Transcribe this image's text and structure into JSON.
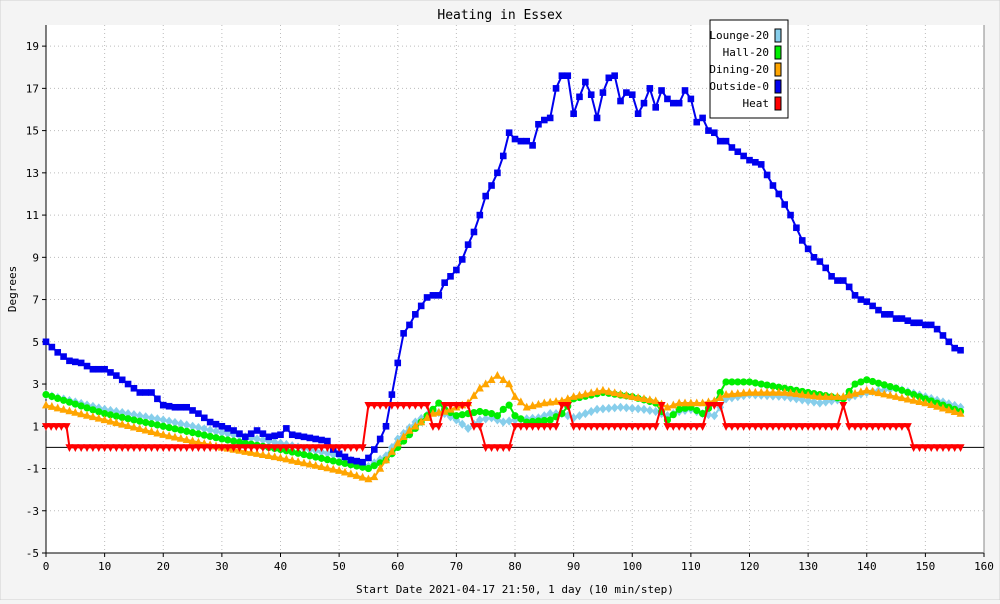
{
  "chart_data": {
    "type": "line",
    "title": "Heating in Essex",
    "xlabel": "Start Date 2021-04-17 21:50, 1 day (10 min/step)",
    "ylabel": "Degrees",
    "xlim": [
      0,
      160
    ],
    "ylim": [
      -5,
      20
    ],
    "x_ticks": [
      0,
      10,
      20,
      30,
      40,
      50,
      60,
      70,
      80,
      90,
      100,
      110,
      120,
      130,
      140,
      150,
      160
    ],
    "y_ticks": [
      -5,
      -3,
      -1,
      1,
      3,
      5,
      7,
      9,
      11,
      13,
      15,
      17,
      19
    ],
    "grid": true,
    "legend_position": "top-right",
    "baseline": 0,
    "series": [
      {
        "name": "Lounge-20",
        "color": "#87ceeb",
        "marker": "diamond",
        "points": [
          [
            0,
            2.5
          ],
          [
            10,
            1.8
          ],
          [
            20,
            1.3
          ],
          [
            30,
            0.7
          ],
          [
            40,
            0.2
          ],
          [
            50,
            -0.4
          ],
          [
            55,
            -0.9
          ],
          [
            58,
            -0.4
          ],
          [
            60,
            0.4
          ],
          [
            63,
            1.2
          ],
          [
            66,
            1.7
          ],
          [
            68,
            1.6
          ],
          [
            70,
            1.3
          ],
          [
            72,
            0.9
          ],
          [
            74,
            1.3
          ],
          [
            76,
            1.4
          ],
          [
            78,
            1.2
          ],
          [
            80,
            1.3
          ],
          [
            84,
            1.4
          ],
          [
            86,
            1.6
          ],
          [
            88,
            1.6
          ],
          [
            90,
            1.4
          ],
          [
            94,
            1.8
          ],
          [
            98,
            1.9
          ],
          [
            102,
            1.8
          ],
          [
            104,
            1.7
          ],
          [
            106,
            1.5
          ],
          [
            108,
            1.7
          ],
          [
            110,
            1.8
          ],
          [
            112,
            1.6
          ],
          [
            114,
            1.5
          ],
          [
            116,
            2.3
          ],
          [
            120,
            2.5
          ],
          [
            126,
            2.4
          ],
          [
            132,
            2.1
          ],
          [
            136,
            2.3
          ],
          [
            140,
            2.6
          ],
          [
            145,
            2.8
          ],
          [
            150,
            2.4
          ],
          [
            156,
            1.9
          ]
        ]
      },
      {
        "name": "Hall-20",
        "color": "#00ee00",
        "marker": "circle",
        "points": [
          [
            0,
            2.5
          ],
          [
            10,
            1.6
          ],
          [
            20,
            1.0
          ],
          [
            30,
            0.4
          ],
          [
            40,
            -0.1
          ],
          [
            50,
            -0.7
          ],
          [
            55,
            -1.0
          ],
          [
            58,
            -0.6
          ],
          [
            60,
            0.0
          ],
          [
            62,
            0.6
          ],
          [
            64,
            1.2
          ],
          [
            66,
            1.8
          ],
          [
            67,
            2.1
          ],
          [
            68,
            1.8
          ],
          [
            70,
            1.5
          ],
          [
            72,
            1.6
          ],
          [
            74,
            1.7
          ],
          [
            76,
            1.6
          ],
          [
            77,
            1.5
          ],
          [
            78,
            1.8
          ],
          [
            79,
            2.0
          ],
          [
            80,
            1.5
          ],
          [
            82,
            1.2
          ],
          [
            86,
            1.3
          ],
          [
            88,
            1.6
          ],
          [
            90,
            2.3
          ],
          [
            95,
            2.6
          ],
          [
            100,
            2.4
          ],
          [
            104,
            2.1
          ],
          [
            106,
            1.3
          ],
          [
            108,
            1.8
          ],
          [
            110,
            1.9
          ],
          [
            112,
            1.6
          ],
          [
            114,
            2.1
          ],
          [
            116,
            3.1
          ],
          [
            120,
            3.1
          ],
          [
            126,
            2.8
          ],
          [
            132,
            2.5
          ],
          [
            136,
            2.3
          ],
          [
            138,
            3.0
          ],
          [
            140,
            3.2
          ],
          [
            145,
            2.8
          ],
          [
            150,
            2.3
          ],
          [
            156,
            1.7
          ]
        ]
      },
      {
        "name": "Dining-20",
        "color": "#ffa500",
        "marker": "triangle",
        "points": [
          [
            0,
            2.0
          ],
          [
            10,
            1.3
          ],
          [
            20,
            0.6
          ],
          [
            30,
            0.0
          ],
          [
            40,
            -0.5
          ],
          [
            50,
            -1.1
          ],
          [
            55,
            -1.5
          ],
          [
            56,
            -1.4
          ],
          [
            58,
            -0.6
          ],
          [
            60,
            0.2
          ],
          [
            62,
            0.8
          ],
          [
            64,
            1.2
          ],
          [
            66,
            1.6
          ],
          [
            68,
            1.7
          ],
          [
            70,
            1.9
          ],
          [
            72,
            2.1
          ],
          [
            74,
            2.8
          ],
          [
            77,
            3.4
          ],
          [
            79,
            3.0
          ],
          [
            80,
            2.4
          ],
          [
            82,
            1.9
          ],
          [
            85,
            2.1
          ],
          [
            88,
            2.2
          ],
          [
            90,
            2.4
          ],
          [
            95,
            2.7
          ],
          [
            100,
            2.4
          ],
          [
            104,
            2.2
          ],
          [
            106,
            1.9
          ],
          [
            108,
            2.1
          ],
          [
            112,
            2.1
          ],
          [
            114,
            2.2
          ],
          [
            116,
            2.5
          ],
          [
            120,
            2.6
          ],
          [
            126,
            2.6
          ],
          [
            132,
            2.4
          ],
          [
            136,
            2.4
          ],
          [
            140,
            2.7
          ],
          [
            145,
            2.4
          ],
          [
            150,
            2.1
          ],
          [
            156,
            1.6
          ]
        ]
      },
      {
        "name": "Outside-0",
        "color": "#0000ee",
        "marker": "square",
        "points": [
          [
            0,
            5.0
          ],
          [
            2,
            4.5
          ],
          [
            4,
            4.1
          ],
          [
            6,
            4.0
          ],
          [
            8,
            3.7
          ],
          [
            10,
            3.7
          ],
          [
            12,
            3.4
          ],
          [
            14,
            3.0
          ],
          [
            16,
            2.6
          ],
          [
            18,
            2.6
          ],
          [
            20,
            2.0
          ],
          [
            22,
            1.9
          ],
          [
            24,
            1.9
          ],
          [
            26,
            1.6
          ],
          [
            28,
            1.2
          ],
          [
            30,
            1.0
          ],
          [
            32,
            0.8
          ],
          [
            34,
            0.5
          ],
          [
            36,
            0.8
          ],
          [
            38,
            0.5
          ],
          [
            40,
            0.6
          ],
          [
            41,
            0.9
          ],
          [
            42,
            0.6
          ],
          [
            44,
            0.5
          ],
          [
            46,
            0.4
          ],
          [
            48,
            0.3
          ],
          [
            49,
            -0.1
          ],
          [
            50,
            -0.3
          ],
          [
            52,
            -0.6
          ],
          [
            54,
            -0.7
          ],
          [
            55,
            -0.5
          ],
          [
            56,
            -0.1
          ],
          [
            57,
            0.4
          ],
          [
            58,
            1.0
          ],
          [
            59,
            2.5
          ],
          [
            60,
            4.0
          ],
          [
            61,
            5.4
          ],
          [
            62,
            5.8
          ],
          [
            63,
            6.3
          ],
          [
            64,
            6.7
          ],
          [
            65,
            7.1
          ],
          [
            66,
            7.2
          ],
          [
            67,
            7.2
          ],
          [
            68,
            7.8
          ],
          [
            69,
            8.1
          ],
          [
            70,
            8.4
          ],
          [
            71,
            8.9
          ],
          [
            72,
            9.6
          ],
          [
            73,
            10.2
          ],
          [
            74,
            11.0
          ],
          [
            75,
            11.9
          ],
          [
            76,
            12.4
          ],
          [
            77,
            13.0
          ],
          [
            78,
            13.8
          ],
          [
            79,
            14.9
          ],
          [
            80,
            14.6
          ],
          [
            81,
            14.5
          ],
          [
            82,
            14.5
          ],
          [
            83,
            14.3
          ],
          [
            84,
            15.3
          ],
          [
            85,
            15.5
          ],
          [
            86,
            15.6
          ],
          [
            87,
            17.0
          ],
          [
            88,
            17.6
          ],
          [
            89,
            17.6
          ],
          [
            90,
            15.8
          ],
          [
            91,
            16.6
          ],
          [
            92,
            17.3
          ],
          [
            93,
            16.7
          ],
          [
            94,
            15.6
          ],
          [
            95,
            16.8
          ],
          [
            96,
            17.5
          ],
          [
            97,
            17.6
          ],
          [
            98,
            16.4
          ],
          [
            99,
            16.8
          ],
          [
            100,
            16.7
          ],
          [
            101,
            15.8
          ],
          [
            102,
            16.3
          ],
          [
            103,
            17.0
          ],
          [
            104,
            16.1
          ],
          [
            105,
            16.9
          ],
          [
            106,
            16.5
          ],
          [
            107,
            16.3
          ],
          [
            108,
            16.3
          ],
          [
            109,
            16.9
          ],
          [
            110,
            16.5
          ],
          [
            111,
            15.4
          ],
          [
            112,
            15.6
          ],
          [
            113,
            15.0
          ],
          [
            114,
            14.9
          ],
          [
            115,
            14.5
          ],
          [
            116,
            14.5
          ],
          [
            117,
            14.2
          ],
          [
            118,
            14.0
          ],
          [
            119,
            13.8
          ],
          [
            120,
            13.6
          ],
          [
            121,
            13.5
          ],
          [
            122,
            13.4
          ],
          [
            123,
            12.9
          ],
          [
            124,
            12.4
          ],
          [
            125,
            12.0
          ],
          [
            126,
            11.5
          ],
          [
            127,
            11.0
          ],
          [
            128,
            10.4
          ],
          [
            129,
            9.8
          ],
          [
            130,
            9.4
          ],
          [
            131,
            9.0
          ],
          [
            132,
            8.8
          ],
          [
            133,
            8.5
          ],
          [
            134,
            8.1
          ],
          [
            135,
            7.9
          ],
          [
            136,
            7.9
          ],
          [
            137,
            7.6
          ],
          [
            138,
            7.2
          ],
          [
            139,
            7.0
          ],
          [
            140,
            6.9
          ],
          [
            141,
            6.7
          ],
          [
            142,
            6.5
          ],
          [
            143,
            6.3
          ],
          [
            144,
            6.3
          ],
          [
            145,
            6.1
          ],
          [
            146,
            6.1
          ],
          [
            147,
            6.0
          ],
          [
            148,
            5.9
          ],
          [
            149,
            5.9
          ],
          [
            150,
            5.8
          ],
          [
            151,
            5.8
          ],
          [
            152,
            5.6
          ],
          [
            153,
            5.3
          ],
          [
            154,
            5.0
          ],
          [
            155,
            4.7
          ],
          [
            156,
            4.6
          ]
        ]
      },
      {
        "name": "Heat",
        "color": "#ff0000",
        "marker": "triangle-down",
        "points": [
          [
            0,
            1
          ],
          [
            3.5,
            1
          ],
          [
            4,
            0
          ],
          [
            54,
            0
          ],
          [
            55,
            2
          ],
          [
            65,
            2
          ],
          [
            66,
            1
          ],
          [
            67,
            1
          ],
          [
            68,
            2
          ],
          [
            72,
            2
          ],
          [
            73,
            1
          ],
          [
            74,
            1
          ],
          [
            75,
            0
          ],
          [
            79,
            0
          ],
          [
            80,
            1
          ],
          [
            87,
            1
          ],
          [
            88,
            2
          ],
          [
            89,
            2
          ],
          [
            90,
            1
          ],
          [
            104,
            1
          ],
          [
            105,
            2
          ],
          [
            106,
            1
          ],
          [
            112,
            1
          ],
          [
            113,
            2
          ],
          [
            115,
            2
          ],
          [
            116,
            1
          ],
          [
            135,
            1
          ],
          [
            136,
            2
          ],
          [
            137,
            1
          ],
          [
            147,
            1
          ],
          [
            148,
            0
          ],
          [
            156,
            0
          ]
        ]
      }
    ]
  }
}
